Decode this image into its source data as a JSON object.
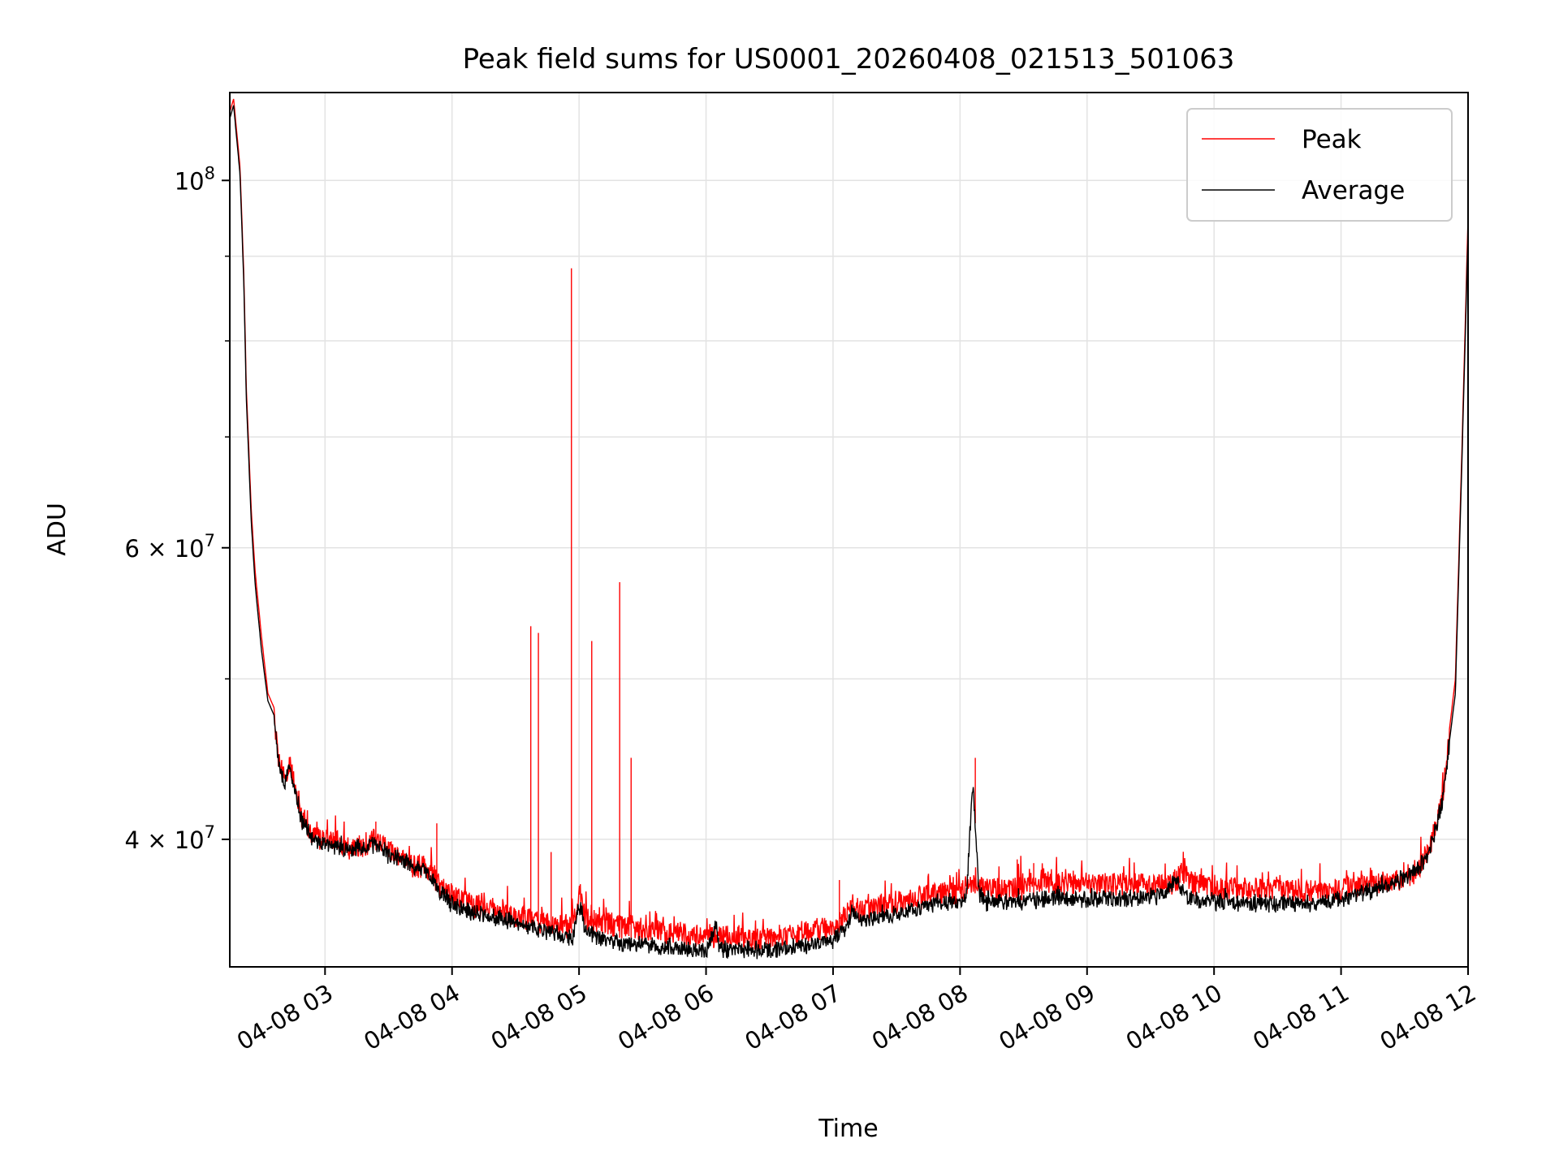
{
  "chart_data": {
    "type": "line",
    "title": "Peak field sums for US0001_20260408_021513_501063",
    "xlabel": "Time",
    "ylabel": "ADU",
    "yscale": "log",
    "xlim_hours": [
      2.25,
      12.0
    ],
    "ylim": [
      33500000,
      113000000
    ],
    "grid": true,
    "legend_position": "upper right",
    "x_ticks": [
      {
        "hour": 3,
        "label": "04-08 03"
      },
      {
        "hour": 4,
        "label": "04-08 04"
      },
      {
        "hour": 5,
        "label": "04-08 05"
      },
      {
        "hour": 6,
        "label": "04-08 06"
      },
      {
        "hour": 7,
        "label": "04-08 07"
      },
      {
        "hour": 8,
        "label": "04-08 08"
      },
      {
        "hour": 9,
        "label": "04-08 09"
      },
      {
        "hour": 10,
        "label": "04-08 10"
      },
      {
        "hour": 11,
        "label": "04-08 11"
      },
      {
        "hour": 12,
        "label": "04-08 12"
      }
    ],
    "y_ticks_major": [
      {
        "value": 100000000,
        "base": "10",
        "exp": "8"
      },
      {
        "value": 60000000,
        "base": "6 × 10",
        "exp": "7"
      },
      {
        "value": 40000000,
        "base": "4 × 10",
        "exp": "7"
      }
    ],
    "y_ticks_minor": [
      50000000,
      70000000,
      80000000,
      90000000
    ],
    "series": [
      {
        "name": "Peak",
        "color": "#ff0000",
        "x_hours": [
          2.25,
          2.28,
          2.33,
          2.36,
          2.38,
          2.42,
          2.45,
          2.5,
          2.55,
          2.6,
          2.63,
          2.68,
          2.72,
          2.75,
          2.8,
          2.9,
          3.0,
          3.1,
          3.2,
          3.3,
          3.4,
          3.5,
          3.6,
          3.7,
          3.8,
          3.85,
          3.9,
          4.0,
          4.1,
          4.25,
          4.4,
          4.55,
          4.7,
          4.85,
          4.95,
          5.0,
          5.05,
          5.2,
          5.4,
          5.6,
          5.8,
          6.0,
          6.08,
          6.1,
          6.2,
          6.4,
          6.6,
          6.8,
          7.0,
          7.1,
          7.15,
          7.2,
          7.4,
          7.6,
          7.8,
          8.0,
          8.05,
          8.1,
          8.15,
          8.2,
          8.4,
          8.6,
          8.8,
          9.0,
          9.2,
          9.4,
          9.6,
          9.7,
          9.75,
          9.8,
          10.0,
          10.2,
          10.4,
          10.6,
          10.8,
          11.0,
          11.1,
          11.3,
          11.5,
          11.6,
          11.7,
          11.8,
          11.9,
          11.95,
          12.0
        ],
        "values": [
          110000000,
          112000000,
          102000000,
          88000000,
          75000000,
          63000000,
          58000000,
          53000000,
          49000000,
          48000000,
          45500000,
          44000000,
          45000000,
          44000000,
          42000000,
          40800000,
          40500000,
          40200000,
          40000000,
          40100000,
          40500000,
          39800000,
          39500000,
          39000000,
          39000000,
          38500000,
          38000000,
          37500000,
          37100000,
          36800000,
          36600000,
          36300000,
          36100000,
          35900000,
          35800000,
          37500000,
          36200000,
          36000000,
          35800000,
          35600000,
          35500000,
          35400000,
          35400000,
          35400000,
          35300000,
          35300000,
          35400000,
          35600000,
          35900000,
          36400000,
          37000000,
          36700000,
          36900000,
          37200000,
          37500000,
          37600000,
          37900000,
          38000000,
          38100000,
          37700000,
          37800000,
          38000000,
          38100000,
          38100000,
          38000000,
          38000000,
          38100000,
          38100000,
          38800000,
          38100000,
          37900000,
          37800000,
          37800000,
          37700000,
          37600000,
          37700000,
          38000000,
          38100000,
          38400000,
          38800000,
          40000000,
          43000000,
          50000000,
          68000000,
          95000000
        ],
        "spikes": [
          {
            "hour": 4.62,
            "value": 53800000
          },
          {
            "hour": 4.68,
            "value": 53300000
          },
          {
            "hour": 4.94,
            "value": 88500000
          },
          {
            "hour": 5.1,
            "value": 52700000
          },
          {
            "hour": 5.32,
            "value": 57200000
          },
          {
            "hour": 5.41,
            "value": 44800000
          },
          {
            "hour": 8.12,
            "value": 44800000
          },
          {
            "hour": 4.78,
            "value": 39300000
          },
          {
            "hour": 3.4,
            "value": 41000000
          },
          {
            "hour": 3.88,
            "value": 40900000
          },
          {
            "hour": 7.05,
            "value": 37800000
          },
          {
            "hour": 8.45,
            "value": 38900000
          },
          {
            "hour": 8.58,
            "value": 38700000
          }
        ]
      },
      {
        "name": "Average",
        "color": "#000000",
        "x_hours": [
          2.25,
          2.28,
          2.33,
          2.36,
          2.38,
          2.42,
          2.45,
          2.5,
          2.55,
          2.6,
          2.63,
          2.68,
          2.72,
          2.75,
          2.8,
          2.9,
          3.0,
          3.1,
          3.2,
          3.3,
          3.4,
          3.5,
          3.6,
          3.7,
          3.8,
          3.85,
          3.9,
          4.0,
          4.1,
          4.25,
          4.4,
          4.55,
          4.7,
          4.85,
          4.95,
          5.0,
          5.05,
          5.2,
          5.4,
          5.6,
          5.8,
          6.0,
          6.08,
          6.1,
          6.2,
          6.4,
          6.6,
          6.8,
          7.0,
          7.1,
          7.15,
          7.2,
          7.4,
          7.6,
          7.8,
          8.0,
          8.05,
          8.1,
          8.15,
          8.2,
          8.4,
          8.6,
          8.8,
          9.0,
          9.2,
          9.4,
          9.6,
          9.7,
          9.75,
          9.8,
          10.0,
          10.2,
          10.4,
          10.6,
          10.8,
          11.0,
          11.1,
          11.3,
          11.5,
          11.6,
          11.7,
          11.8,
          11.9,
          11.95,
          12.0
        ],
        "values": [
          109000000,
          111000000,
          101000000,
          87000000,
          74000000,
          62000000,
          57000000,
          52000000,
          48500000,
          47500000,
          45000000,
          43500000,
          44500000,
          43500000,
          41500000,
          40300000,
          40000000,
          39800000,
          39700000,
          39800000,
          40000000,
          39400000,
          39100000,
          38700000,
          38500000,
          38000000,
          37400000,
          36800000,
          36400000,
          36200000,
          36000000,
          35700000,
          35500000,
          35200000,
          35100000,
          36800000,
          35500000,
          35000000,
          34800000,
          34700000,
          34600000,
          34500000,
          35800000,
          34600000,
          34500000,
          34500000,
          34600000,
          34700000,
          34900000,
          35600000,
          36500000,
          35900000,
          36100000,
          36400000,
          36800000,
          36900000,
          37200000,
          43500000,
          37300000,
          36900000,
          36900000,
          37000000,
          37100000,
          37000000,
          37000000,
          37100000,
          37200000,
          38000000,
          37400000,
          37100000,
          36900000,
          36900000,
          36800000,
          36800000,
          36800000,
          37000000,
          37300000,
          37600000,
          38100000,
          38600000,
          39600000,
          42500000,
          49000000,
          67000000,
          93000000
        ]
      }
    ]
  }
}
